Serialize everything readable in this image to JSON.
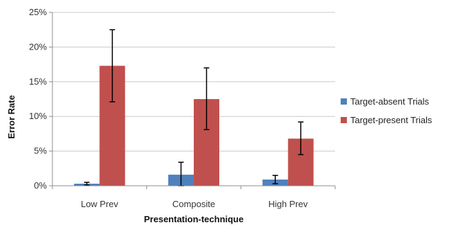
{
  "chart_data": {
    "type": "bar",
    "title": "",
    "xlabel": "Presentation-technique",
    "ylabel": "Error Rate",
    "categories": [
      "Low Prev",
      "Composite",
      "High Prev"
    ],
    "ylim": [
      0,
      25
    ],
    "yticks": [
      "0%",
      "5%",
      "10%",
      "15%",
      "20%",
      "25%"
    ],
    "ytick_values": [
      0,
      5,
      10,
      15,
      20,
      25
    ],
    "grid": true,
    "legend_position": "right",
    "series": [
      {
        "name": "Target-absent Trials",
        "color": "#4f81bd",
        "values": [
          0.3,
          1.6,
          0.9
        ],
        "err_low": [
          0.1,
          0.0,
          0.3
        ],
        "err_high": [
          0.5,
          3.4,
          1.5
        ]
      },
      {
        "name": "Target-present Trials",
        "color": "#c0504d",
        "values": [
          17.3,
          12.5,
          6.8
        ],
        "err_low": [
          12.1,
          8.1,
          4.5
        ],
        "err_high": [
          22.5,
          17.0,
          9.2
        ]
      }
    ]
  }
}
